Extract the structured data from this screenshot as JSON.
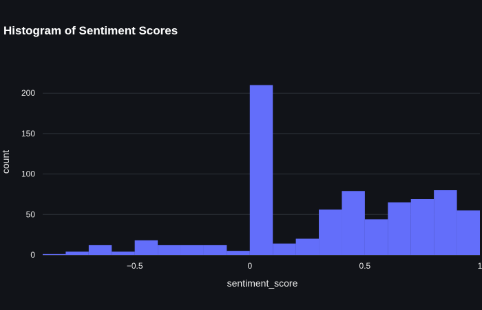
{
  "chart_data": {
    "type": "histogram",
    "title": "Histogram of Sentiment Scores",
    "xlabel": "sentiment_score",
    "ylabel": "count",
    "bin_width": 0.1,
    "bins": [
      {
        "x0": -0.9,
        "x1": -0.8,
        "count": 1
      },
      {
        "x0": -0.8,
        "x1": -0.7,
        "count": 4
      },
      {
        "x0": -0.7,
        "x1": -0.6,
        "count": 12
      },
      {
        "x0": -0.6,
        "x1": -0.5,
        "count": 4
      },
      {
        "x0": -0.5,
        "x1": -0.4,
        "count": 18
      },
      {
        "x0": -0.4,
        "x1": -0.3,
        "count": 12
      },
      {
        "x0": -0.3,
        "x1": -0.2,
        "count": 12
      },
      {
        "x0": -0.2,
        "x1": -0.1,
        "count": 12
      },
      {
        "x0": -0.1,
        "x1": 0.0,
        "count": 5
      },
      {
        "x0": 0.0,
        "x1": 0.1,
        "count": 210
      },
      {
        "x0": 0.1,
        "x1": 0.2,
        "count": 14
      },
      {
        "x0": 0.2,
        "x1": 0.3,
        "count": 20
      },
      {
        "x0": 0.3,
        "x1": 0.4,
        "count": 56
      },
      {
        "x0": 0.4,
        "x1": 0.5,
        "count": 79
      },
      {
        "x0": 0.5,
        "x1": 0.6,
        "count": 44
      },
      {
        "x0": 0.6,
        "x1": 0.7,
        "count": 65
      },
      {
        "x0": 0.7,
        "x1": 0.8,
        "count": 69
      },
      {
        "x0": 0.8,
        "x1": 0.9,
        "count": 80
      },
      {
        "x0": 0.9,
        "x1": 1.0,
        "count": 55
      }
    ],
    "xlim": [
      -0.9,
      1.0
    ],
    "ylim": [
      0,
      230
    ],
    "x_ticks": [
      {
        "value": -0.5,
        "label": "−0.5"
      },
      {
        "value": 0,
        "label": "0"
      },
      {
        "value": 0.5,
        "label": "0.5"
      },
      {
        "value": 1,
        "label": "1"
      }
    ],
    "y_ticks": [
      {
        "value": 0,
        "label": "0"
      },
      {
        "value": 50,
        "label": "50"
      },
      {
        "value": 100,
        "label": "100"
      },
      {
        "value": 150,
        "label": "150"
      },
      {
        "value": 200,
        "label": "200"
      }
    ],
    "grid": true,
    "bar_color": "#636efa",
    "background_color": "#111318",
    "grid_color": "#2e3339"
  }
}
